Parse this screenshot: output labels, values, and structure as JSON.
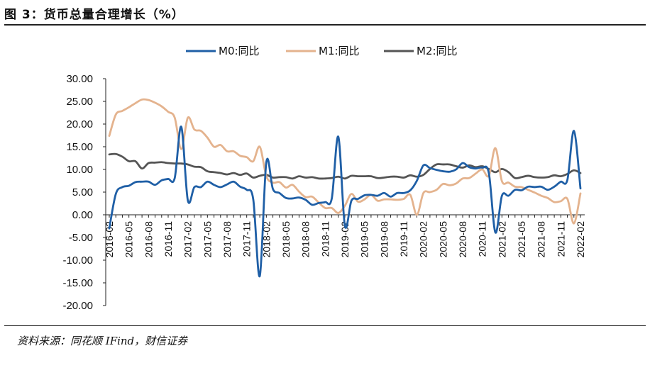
{
  "header": {
    "title": "图 3：货币总量合理增长（%）"
  },
  "footer": {
    "source": "资料来源：同花顺 IFind，财信证券"
  },
  "chart_data": {
    "type": "line",
    "title": "",
    "xlabel": "",
    "ylabel": "",
    "ylim": [
      -20,
      30
    ],
    "yticks": [
      "30.00",
      "25.00",
      "20.00",
      "15.00",
      "10.00",
      "5.00",
      "0.00",
      "-5.00",
      "-10.00",
      "-15.00",
      "-20.00"
    ],
    "grid": false,
    "legend_position": "top",
    "x": [
      "2016-02",
      "2016-03",
      "2016-04",
      "2016-05",
      "2016-06",
      "2016-07",
      "2016-08",
      "2016-09",
      "2016-10",
      "2016-11",
      "2016-12",
      "2017-01",
      "2017-02",
      "2017-03",
      "2017-04",
      "2017-05",
      "2017-06",
      "2017-07",
      "2017-08",
      "2017-09",
      "2017-10",
      "2017-11",
      "2017-12",
      "2018-01",
      "2018-02",
      "2018-03",
      "2018-04",
      "2018-05",
      "2018-06",
      "2018-07",
      "2018-08",
      "2018-09",
      "2018-10",
      "2018-11",
      "2018-12",
      "2019-01",
      "2019-02",
      "2019-03",
      "2019-04",
      "2019-05",
      "2019-06",
      "2019-07",
      "2019-08",
      "2019-09",
      "2019-10",
      "2019-11",
      "2019-12",
      "2020-01",
      "2020-02",
      "2020-03",
      "2020-04",
      "2020-05",
      "2020-06",
      "2020-07",
      "2020-08",
      "2020-09",
      "2020-10",
      "2020-11",
      "2020-12",
      "2021-01",
      "2021-02",
      "2021-03",
      "2021-04",
      "2021-05",
      "2021-06",
      "2021-07",
      "2021-08",
      "2021-09",
      "2021-10",
      "2021-11",
      "2021-12",
      "2022-01",
      "2022-02"
    ],
    "xtick_labels": [
      "2016-02",
      "2016-05",
      "2016-08",
      "2016-11",
      "2017-02",
      "2017-05",
      "2017-08",
      "2017-11",
      "2018-02",
      "2018-05",
      "2018-08",
      "2018-11",
      "2019-02",
      "2019-05",
      "2019-08",
      "2019-11",
      "2020-02",
      "2020-05",
      "2020-08",
      "2020-11",
      "2021-02",
      "2021-05",
      "2021-08",
      "2021-11",
      "2022-02"
    ],
    "colors": {
      "M0": "#1f5fa6",
      "M1": "#e4b38e",
      "M2": "#555555"
    },
    "series": [
      {
        "name": "M0:同比",
        "key": "M0",
        "values": [
          -3.0,
          4.6,
          6.1,
          6.4,
          7.2,
          7.3,
          7.3,
          6.6,
          7.6,
          7.9,
          8.1,
          19.4,
          3.2,
          6.1,
          6.1,
          7.3,
          6.6,
          6.1,
          6.7,
          7.3,
          6.2,
          5.5,
          3.4,
          -13.5,
          11.6,
          5.7,
          4.8,
          3.7,
          3.6,
          3.8,
          3.3,
          2.2,
          2.6,
          2.8,
          3.6,
          17.2,
          -2.4,
          3.1,
          3.5,
          4.3,
          4.4,
          4.2,
          4.8,
          4.0,
          4.8,
          4.8,
          5.4,
          7.5,
          10.9,
          10.3,
          9.9,
          9.6,
          9.5,
          10.0,
          11.4,
          10.5,
          10.2,
          10.4,
          9.2,
          -3.9,
          4.2,
          4.2,
          5.5,
          5.4,
          6.2,
          6.1,
          6.2,
          5.5,
          6.2,
          7.3,
          7.7,
          18.5,
          5.8
        ]
      },
      {
        "name": "M1:同比",
        "key": "M1",
        "values": [
          17.4,
          22.1,
          22.9,
          23.7,
          24.6,
          25.4,
          25.3,
          24.7,
          23.9,
          22.7,
          21.4,
          14.5,
          21.4,
          18.8,
          18.5,
          17.0,
          15.0,
          15.4,
          14.0,
          14.0,
          13.0,
          12.7,
          11.8,
          15.0,
          8.5,
          7.1,
          7.2,
          6.0,
          6.6,
          5.1,
          3.9,
          4.0,
          2.7,
          1.5,
          1.5,
          0.4,
          2.0,
          4.6,
          2.9,
          3.4,
          4.4,
          3.1,
          3.4,
          3.4,
          3.3,
          3.5,
          4.4,
          0.0,
          4.8,
          5.0,
          5.5,
          6.8,
          6.5,
          6.9,
          8.0,
          8.1,
          9.1,
          10.0,
          8.6,
          14.7,
          7.4,
          7.1,
          6.2,
          6.1,
          5.5,
          4.9,
          4.2,
          3.7,
          2.8,
          3.0,
          3.5,
          -1.9,
          4.7
        ]
      },
      {
        "name": "M2:同比",
        "key": "M2",
        "values": [
          13.3,
          13.4,
          12.8,
          11.8,
          11.8,
          10.2,
          11.4,
          11.5,
          11.6,
          11.4,
          11.3,
          11.3,
          11.1,
          10.6,
          10.5,
          9.6,
          9.4,
          9.2,
          8.9,
          9.2,
          8.8,
          9.1,
          8.2,
          8.6,
          8.8,
          8.2,
          8.3,
          8.3,
          8.0,
          8.5,
          8.2,
          8.3,
          8.0,
          8.0,
          8.1,
          8.4,
          8.0,
          8.6,
          8.5,
          8.5,
          8.5,
          8.1,
          8.2,
          8.4,
          8.4,
          8.2,
          8.7,
          8.4,
          8.8,
          10.1,
          11.1,
          11.1,
          11.1,
          10.7,
          10.4,
          10.9,
          10.5,
          10.7,
          10.1,
          9.4,
          10.1,
          9.4,
          8.1,
          8.3,
          8.6,
          8.3,
          8.2,
          8.3,
          8.7,
          8.5,
          9.0,
          9.8,
          9.2
        ]
      }
    ]
  }
}
